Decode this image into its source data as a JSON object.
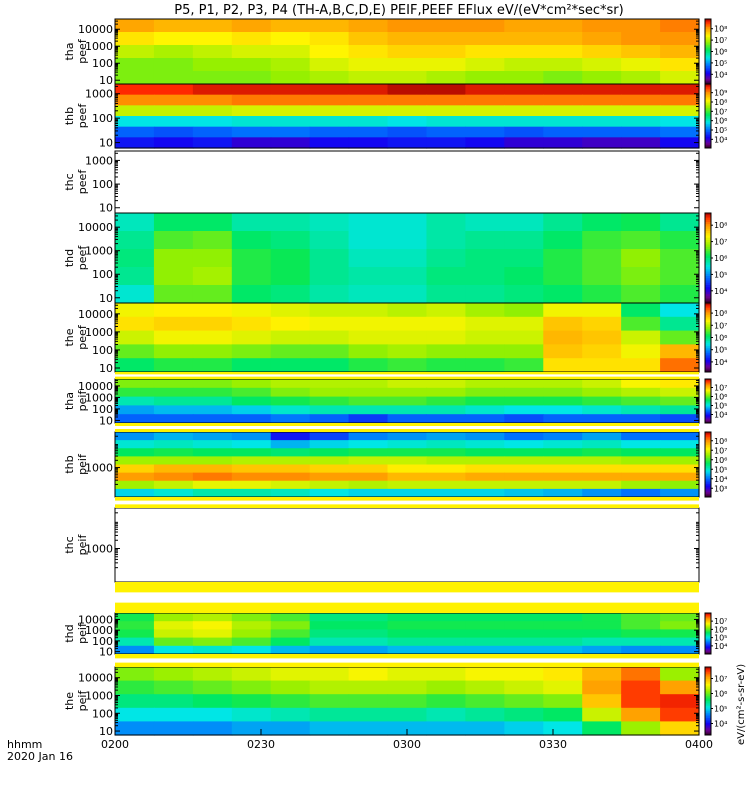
{
  "chart_data": {
    "type": "heatmap",
    "title": "P5, P1, P2, P3, P4 (TH-A,B,C,D,E) PEIF,PEEF EFlux eV/(eV*cm²*sec*sr)",
    "time_axis": {
      "label_line1": "hhmm",
      "label_line2": "2020 Jan 16",
      "range": [
        "0200",
        "0400"
      ],
      "ticks": [
        "0200",
        "0230",
        "0300",
        "0330",
        "0400"
      ]
    },
    "colorbar_label": "eV/(cm²-s-sr-eV)",
    "panels": [
      {
        "name": "tha-peef",
        "probe": "tha",
        "product": "peef",
        "y_ticks": [
          "10",
          "100",
          "1000",
          "10000"
        ],
        "y_tick_values": [
          10,
          100,
          1000,
          10000
        ],
        "ylim": [
          6,
          40000
        ],
        "cbar_ticks": [
          "10⁴",
          "10⁵",
          "10⁶",
          "10⁷",
          "10⁸"
        ],
        "log_eflux_range": [
          3.5,
          8.5
        ],
        "rows": [
          [
            7.7,
            7.6,
            7.6,
            7.7,
            7.6,
            7.6,
            7.7,
            7.8,
            7.8,
            7.8,
            7.7,
            7.7,
            7.8,
            7.8,
            7.9
          ],
          [
            7.3,
            7.2,
            7.2,
            7.3,
            7.2,
            7.3,
            7.5,
            7.6,
            7.6,
            7.6,
            7.6,
            7.6,
            7.7,
            7.8,
            7.8
          ],
          [
            6.9,
            6.8,
            6.9,
            7.0,
            7.0,
            7.2,
            7.3,
            7.4,
            7.4,
            7.3,
            7.3,
            7.3,
            7.4,
            7.5,
            7.6
          ],
          [
            6.6,
            6.6,
            6.7,
            6.7,
            6.8,
            7.0,
            7.1,
            7.1,
            7.1,
            7.0,
            6.9,
            6.9,
            7.0,
            7.1,
            7.3
          ],
          [
            6.6,
            6.6,
            6.6,
            6.6,
            6.7,
            6.8,
            6.9,
            6.9,
            6.8,
            6.7,
            6.7,
            6.6,
            6.7,
            6.8,
            7.0
          ]
        ]
      },
      {
        "name": "thb-peef",
        "probe": "thb",
        "product": "peef",
        "y_ticks": [
          "10",
          "100",
          "1000"
        ],
        "y_tick_values": [
          10,
          100,
          1000
        ],
        "ylim": [
          6,
          2500
        ],
        "cbar_ticks": [
          "10⁴",
          "10⁵",
          "10⁶",
          "10⁷",
          "10⁸",
          "10⁹"
        ],
        "log_eflux_range": [
          3.0,
          9.0
        ],
        "rows": [
          [
            8.7,
            8.7,
            8.8,
            8.8,
            8.8,
            8.8,
            8.8,
            8.9,
            8.9,
            8.8,
            8.8,
            8.8,
            8.8,
            8.8,
            8.8
          ],
          [
            8.2,
            8.2,
            8.2,
            8.3,
            8.3,
            8.3,
            8.3,
            8.3,
            8.3,
            8.3,
            8.3,
            8.3,
            8.3,
            8.3,
            8.3
          ],
          [
            7.1,
            7.1,
            7.1,
            7.2,
            7.2,
            7.2,
            7.2,
            7.2,
            7.2,
            7.2,
            7.2,
            7.2,
            7.2,
            7.2,
            7.2
          ],
          [
            5.4,
            5.4,
            5.4,
            5.5,
            5.5,
            5.5,
            5.5,
            5.4,
            5.5,
            5.5,
            5.5,
            5.5,
            5.5,
            5.5,
            5.4
          ],
          [
            4.6,
            4.5,
            4.6,
            4.7,
            4.7,
            4.6,
            4.6,
            4.5,
            4.6,
            4.6,
            4.5,
            4.6,
            4.6,
            4.6,
            4.7
          ],
          [
            4.1,
            4.0,
            4.1,
            3.8,
            3.8,
            4.0,
            4.0,
            4.1,
            4.1,
            4.0,
            3.8,
            3.8,
            3.7,
            3.7,
            4.0
          ]
        ]
      },
      {
        "name": "thc-peef",
        "probe": "thc",
        "product": "peef",
        "y_ticks": [
          "10",
          "100",
          "1000"
        ],
        "y_tick_values": [
          10,
          100,
          1000
        ],
        "ylim": [
          6,
          2500
        ],
        "cbar_ticks": [],
        "log_eflux_range": [
          3.0,
          9.0
        ],
        "rows": []
      },
      {
        "name": "thd-peef",
        "probe": "thd",
        "product": "peef",
        "y_ticks": [
          "10",
          "100",
          "1000",
          "10000"
        ],
        "y_tick_values": [
          10,
          100,
          1000,
          10000
        ],
        "ylim": [
          6,
          40000
        ],
        "cbar_ticks": [
          "10⁴",
          "10⁵",
          "10⁶",
          "10⁷",
          "10⁸"
        ],
        "log_eflux_range": [
          3.0,
          8.5
        ],
        "rows": [
          [
            5.4,
            5.8,
            5.8,
            5.5,
            5.5,
            5.4,
            5.3,
            5.3,
            5.5,
            5.4,
            5.4,
            5.6,
            5.8,
            5.9,
            5.6
          ],
          [
            5.6,
            6.2,
            6.3,
            5.8,
            5.7,
            5.5,
            5.3,
            5.3,
            5.5,
            5.6,
            5.6,
            5.8,
            6.1,
            6.2,
            6.0
          ],
          [
            5.7,
            6.5,
            6.5,
            6.0,
            5.9,
            5.6,
            5.4,
            5.4,
            5.6,
            5.7,
            5.7,
            6.0,
            6.2,
            6.5,
            6.2
          ],
          [
            5.6,
            6.5,
            6.6,
            6.0,
            5.9,
            5.6,
            5.5,
            5.5,
            5.7,
            5.7,
            5.8,
            6.0,
            6.2,
            6.4,
            6.2
          ],
          [
            5.3,
            6.3,
            6.3,
            5.8,
            5.7,
            5.5,
            5.4,
            5.4,
            5.6,
            5.6,
            5.7,
            5.8,
            6.0,
            6.2,
            6.0
          ]
        ]
      },
      {
        "name": "the-peef",
        "probe": "the",
        "product": "peef",
        "y_ticks": [
          "10",
          "100",
          "1000",
          "10000"
        ],
        "y_tick_values": [
          10,
          100,
          1000,
          10000
        ],
        "ylim": [
          6,
          40000
        ],
        "cbar_ticks": [
          "10⁴",
          "10⁵",
          "10⁶",
          "10⁷",
          "10⁸"
        ],
        "log_eflux_range": [
          3.0,
          8.5
        ],
        "rows": [
          [
            7.0,
            7.1,
            7.1,
            7.0,
            6.9,
            6.8,
            6.8,
            6.7,
            6.8,
            6.6,
            6.5,
            7.0,
            7.0,
            5.8,
            5.2
          ],
          [
            7.2,
            7.3,
            7.3,
            7.2,
            7.1,
            7.0,
            7.0,
            7.0,
            7.0,
            6.9,
            6.9,
            7.4,
            7.3,
            6.2,
            5.6
          ],
          [
            6.8,
            7.0,
            7.0,
            6.9,
            6.8,
            6.8,
            6.9,
            6.9,
            6.9,
            6.8,
            6.8,
            7.5,
            7.4,
            6.8,
            6.3
          ],
          [
            6.3,
            6.5,
            6.5,
            6.4,
            6.3,
            6.3,
            6.5,
            6.6,
            6.5,
            6.5,
            6.5,
            7.4,
            7.3,
            7.0,
            7.5
          ],
          [
            5.8,
            6.0,
            6.0,
            5.8,
            5.8,
            5.8,
            6.0,
            6.1,
            6.0,
            6.0,
            6.1,
            7.2,
            7.2,
            7.2,
            7.9
          ]
        ]
      },
      {
        "name": "tha-peif",
        "probe": "tha",
        "product": "peif",
        "y_ticks": [
          "10",
          "100",
          "1000",
          "10000"
        ],
        "y_tick_values": [
          10,
          100,
          1000,
          10000
        ],
        "ylim": [
          6,
          40000
        ],
        "cbar_ticks": [
          "10⁴",
          "10⁵",
          "10⁶",
          "10⁷"
        ],
        "log_eflux_range": [
          3.0,
          7.5
        ],
        "rows": [
          [
            5.8,
            5.8,
            5.8,
            5.9,
            6.0,
            6.0,
            6.0,
            6.1,
            6.1,
            6.0,
            6.0,
            6.0,
            6.1,
            6.3,
            6.4
          ],
          [
            5.5,
            5.5,
            5.5,
            5.6,
            5.8,
            5.9,
            5.9,
            5.9,
            5.9,
            5.8,
            5.8,
            5.8,
            5.9,
            6.0,
            6.1
          ],
          [
            5.0,
            5.1,
            5.1,
            5.3,
            5.4,
            5.5,
            5.6,
            5.6,
            5.5,
            5.4,
            5.4,
            5.4,
            5.5,
            5.6,
            5.7
          ],
          [
            4.5,
            4.6,
            4.6,
            4.7,
            4.9,
            5.0,
            5.0,
            5.0,
            5.0,
            4.9,
            4.8,
            4.8,
            4.9,
            5.0,
            5.1
          ],
          [
            4.2,
            4.2,
            4.2,
            4.2,
            4.3,
            4.2,
            4.0,
            4.2,
            4.2,
            4.2,
            4.1,
            4.2,
            4.2,
            4.2,
            4.1
          ]
        ]
      },
      {
        "name": "thb-peif",
        "probe": "thb",
        "product": "peif",
        "y_ticks": [
          "1000"
        ],
        "y_tick_values": [
          1000
        ],
        "ylim": [
          60,
          30000
        ],
        "cbar_ticks": [
          "10³",
          "10⁴",
          "10⁵",
          "10⁶",
          "10⁷",
          "10⁸"
        ],
        "log_eflux_range": [
          2.5,
          8.5
        ],
        "rows": [
          [
            4.4,
            4.6,
            4.5,
            4.4,
            3.6,
            3.9,
            4.3,
            4.4,
            4.5,
            4.4,
            4.2,
            4.3,
            4.5,
            4.2,
            4.2
          ],
          [
            5.0,
            5.1,
            5.0,
            4.9,
            4.6,
            4.8,
            4.9,
            5.0,
            5.1,
            5.0,
            4.9,
            5.0,
            5.1,
            4.9,
            4.9
          ],
          [
            5.6,
            5.7,
            5.6,
            5.6,
            5.5,
            5.6,
            5.7,
            5.7,
            5.7,
            5.6,
            5.6,
            5.6,
            5.7,
            5.6,
            5.6
          ],
          [
            6.4,
            6.4,
            6.4,
            6.5,
            6.5,
            6.5,
            6.6,
            6.6,
            6.5,
            6.5,
            6.5,
            6.5,
            6.5,
            6.4,
            6.4
          ],
          [
            7.2,
            7.4,
            7.4,
            7.3,
            7.3,
            7.2,
            7.2,
            7.0,
            7.0,
            7.1,
            7.1,
            7.1,
            7.1,
            7.1,
            7.1
          ],
          [
            7.6,
            7.7,
            7.8,
            7.7,
            7.7,
            7.6,
            7.6,
            7.4,
            7.4,
            7.5,
            7.5,
            7.5,
            7.5,
            7.5,
            7.5
          ],
          [
            6.4,
            6.6,
            6.8,
            6.8,
            6.7,
            6.6,
            6.5,
            6.6,
            6.6,
            6.6,
            6.6,
            6.6,
            6.6,
            6.4,
            6.3
          ],
          [
            4.8,
            5.0,
            5.2,
            5.2,
            5.1,
            4.9,
            4.8,
            4.8,
            4.8,
            4.8,
            4.7,
            4.6,
            4.4,
            4.2,
            4.4
          ]
        ]
      },
      {
        "name": "thc-peif",
        "probe": "thc",
        "product": "peif",
        "y_ticks": [
          "1000"
        ],
        "y_tick_values": [
          1000
        ],
        "ylim": [
          60,
          30000
        ],
        "cbar_ticks": [],
        "log_eflux_range": [
          2.5,
          8.5
        ],
        "rows": []
      },
      {
        "name": "thd-peif",
        "probe": "thd",
        "product": "peif",
        "y_ticks": [
          "10",
          "100",
          "1000",
          "10000"
        ],
        "y_tick_values": [
          10,
          100,
          1000,
          10000
        ],
        "ylim": [
          6,
          40000
        ],
        "cbar_ticks": [
          "10⁴",
          "10⁵",
          "10⁶",
          "10⁷"
        ],
        "log_eflux_range": [
          3.0,
          7.5
        ],
        "rows": [
          [
            5.4,
            5.9,
            6.0,
            5.8,
            5.6,
            5.2,
            5.2,
            5.3,
            5.3,
            5.3,
            5.3,
            5.3,
            5.4,
            5.6,
            5.7
          ],
          [
            5.5,
            6.2,
            6.3,
            6.0,
            5.8,
            5.3,
            5.3,
            5.4,
            5.4,
            5.4,
            5.4,
            5.4,
            5.4,
            5.6,
            5.8
          ],
          [
            5.4,
            6.1,
            6.2,
            5.9,
            5.6,
            5.2,
            5.2,
            5.3,
            5.3,
            5.3,
            5.3,
            5.3,
            5.3,
            5.4,
            5.4
          ],
          [
            5.0,
            5.7,
            5.8,
            5.6,
            5.3,
            5.0,
            5.0,
            5.1,
            5.1,
            5.1,
            5.1,
            5.1,
            5.0,
            5.0,
            5.0
          ],
          [
            4.4,
            4.8,
            4.9,
            4.8,
            4.6,
            4.5,
            4.5,
            4.6,
            4.6,
            4.6,
            4.6,
            4.6,
            4.5,
            4.4,
            4.4
          ]
        ]
      },
      {
        "name": "the-peif",
        "probe": "the",
        "product": "peif",
        "y_ticks": [
          "10",
          "100",
          "1000",
          "10000"
        ],
        "y_tick_values": [
          10,
          100,
          1000,
          10000
        ],
        "ylim": [
          6,
          40000
        ],
        "cbar_ticks": [
          "10⁴",
          "10⁵",
          "10⁶",
          "10⁷"
        ],
        "log_eflux_range": [
          3.0,
          7.5
        ],
        "rows": [
          [
            5.8,
            5.9,
            6.0,
            6.1,
            6.2,
            6.2,
            6.3,
            6.2,
            6.2,
            6.3,
            6.3,
            6.4,
            6.7,
            7.0,
            5.9
          ],
          [
            5.5,
            5.6,
            5.7,
            5.8,
            5.9,
            6.0,
            6.0,
            6.0,
            5.9,
            6.0,
            6.1,
            6.2,
            6.8,
            7.2,
            6.8
          ],
          [
            5.2,
            5.2,
            5.3,
            5.4,
            5.5,
            5.6,
            5.6,
            5.6,
            5.5,
            5.6,
            5.7,
            5.8,
            6.6,
            7.2,
            7.3
          ],
          [
            4.8,
            4.8,
            4.8,
            4.9,
            5.0,
            5.1,
            5.1,
            5.1,
            5.0,
            5.1,
            5.2,
            5.3,
            6.1,
            6.8,
            7.2
          ],
          [
            4.4,
            4.4,
            4.4,
            4.5,
            4.5,
            4.6,
            4.6,
            4.6,
            4.6,
            4.6,
            4.7,
            4.8,
            5.3,
            5.9,
            6.5
          ]
        ]
      }
    ]
  }
}
